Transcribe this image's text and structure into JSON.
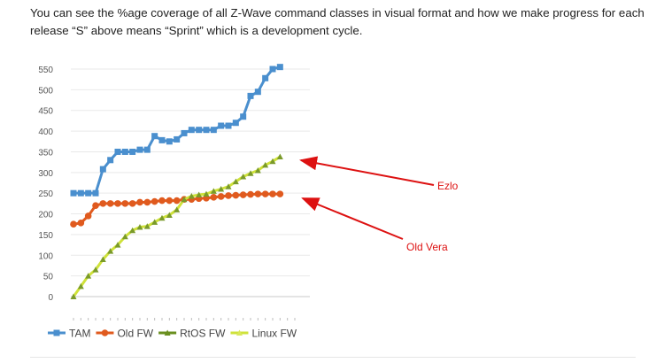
{
  "intro_text": "You can see the %age coverage of all Z-Wave command classes in visual format and how we make progress for each release “S” above means “Sprint” which is a development cycle.",
  "chart_data": {
    "type": "line",
    "title": "",
    "xlabel": "",
    "ylabel": "",
    "ylim": [
      0,
      550
    ],
    "yticks": [
      0,
      50,
      100,
      150,
      200,
      250,
      300,
      350,
      400,
      450,
      500,
      550
    ],
    "grid": true,
    "legend_position": "bottom",
    "x": [
      1,
      2,
      3,
      4,
      5,
      6,
      7,
      8,
      9,
      10,
      11,
      12,
      13,
      14,
      15,
      16,
      17,
      18,
      19,
      20,
      21,
      22,
      23,
      24,
      25,
      26,
      27,
      28,
      29,
      30,
      31
    ],
    "series": [
      {
        "name": "TAM",
        "color": "#4a8fce",
        "marker": "square",
        "values": [
          250,
          250,
          250,
          250,
          308,
          330,
          350,
          350,
          350,
          355,
          355,
          388,
          378,
          375,
          380,
          395,
          403,
          403,
          403,
          403,
          413,
          413,
          420,
          435,
          485,
          495,
          528,
          550,
          555,
          null,
          null
        ]
      },
      {
        "name": "Old FW",
        "color": "#e05a1e",
        "marker": "circle",
        "values": [
          175,
          178,
          195,
          220,
          225,
          225,
          225,
          225,
          225,
          228,
          228,
          230,
          232,
          232,
          232,
          235,
          235,
          237,
          238,
          240,
          242,
          244,
          245,
          246,
          247,
          248,
          248,
          248,
          248,
          null,
          null
        ]
      },
      {
        "name": "RtOS FW",
        "color": "#6a8f1f",
        "marker": "triangle",
        "values": [
          null,
          null,
          null,
          null,
          null,
          null,
          null,
          null,
          null,
          null,
          null,
          null,
          null,
          null,
          null,
          null,
          null,
          null,
          null,
          null,
          null,
          null,
          null,
          null,
          null,
          null,
          null,
          null,
          null,
          null,
          null
        ]
      },
      {
        "name": "Linux FW",
        "color": "#cfe23a",
        "marker": "triangle",
        "values": [
          0,
          25,
          50,
          65,
          90,
          110,
          125,
          145,
          160,
          168,
          170,
          180,
          190,
          197,
          210,
          235,
          243,
          246,
          248,
          255,
          260,
          266,
          278,
          290,
          298,
          305,
          318,
          327,
          338,
          null,
          null
        ]
      }
    ]
  },
  "annotations": [
    {
      "label": "Ezlo",
      "color": "#dd1111",
      "points_to_series": "Linux FW",
      "at_value": 338
    },
    {
      "label": "Old Vera",
      "color": "#dd1111",
      "points_to_series": "Old FW",
      "at_value": 248
    }
  ]
}
